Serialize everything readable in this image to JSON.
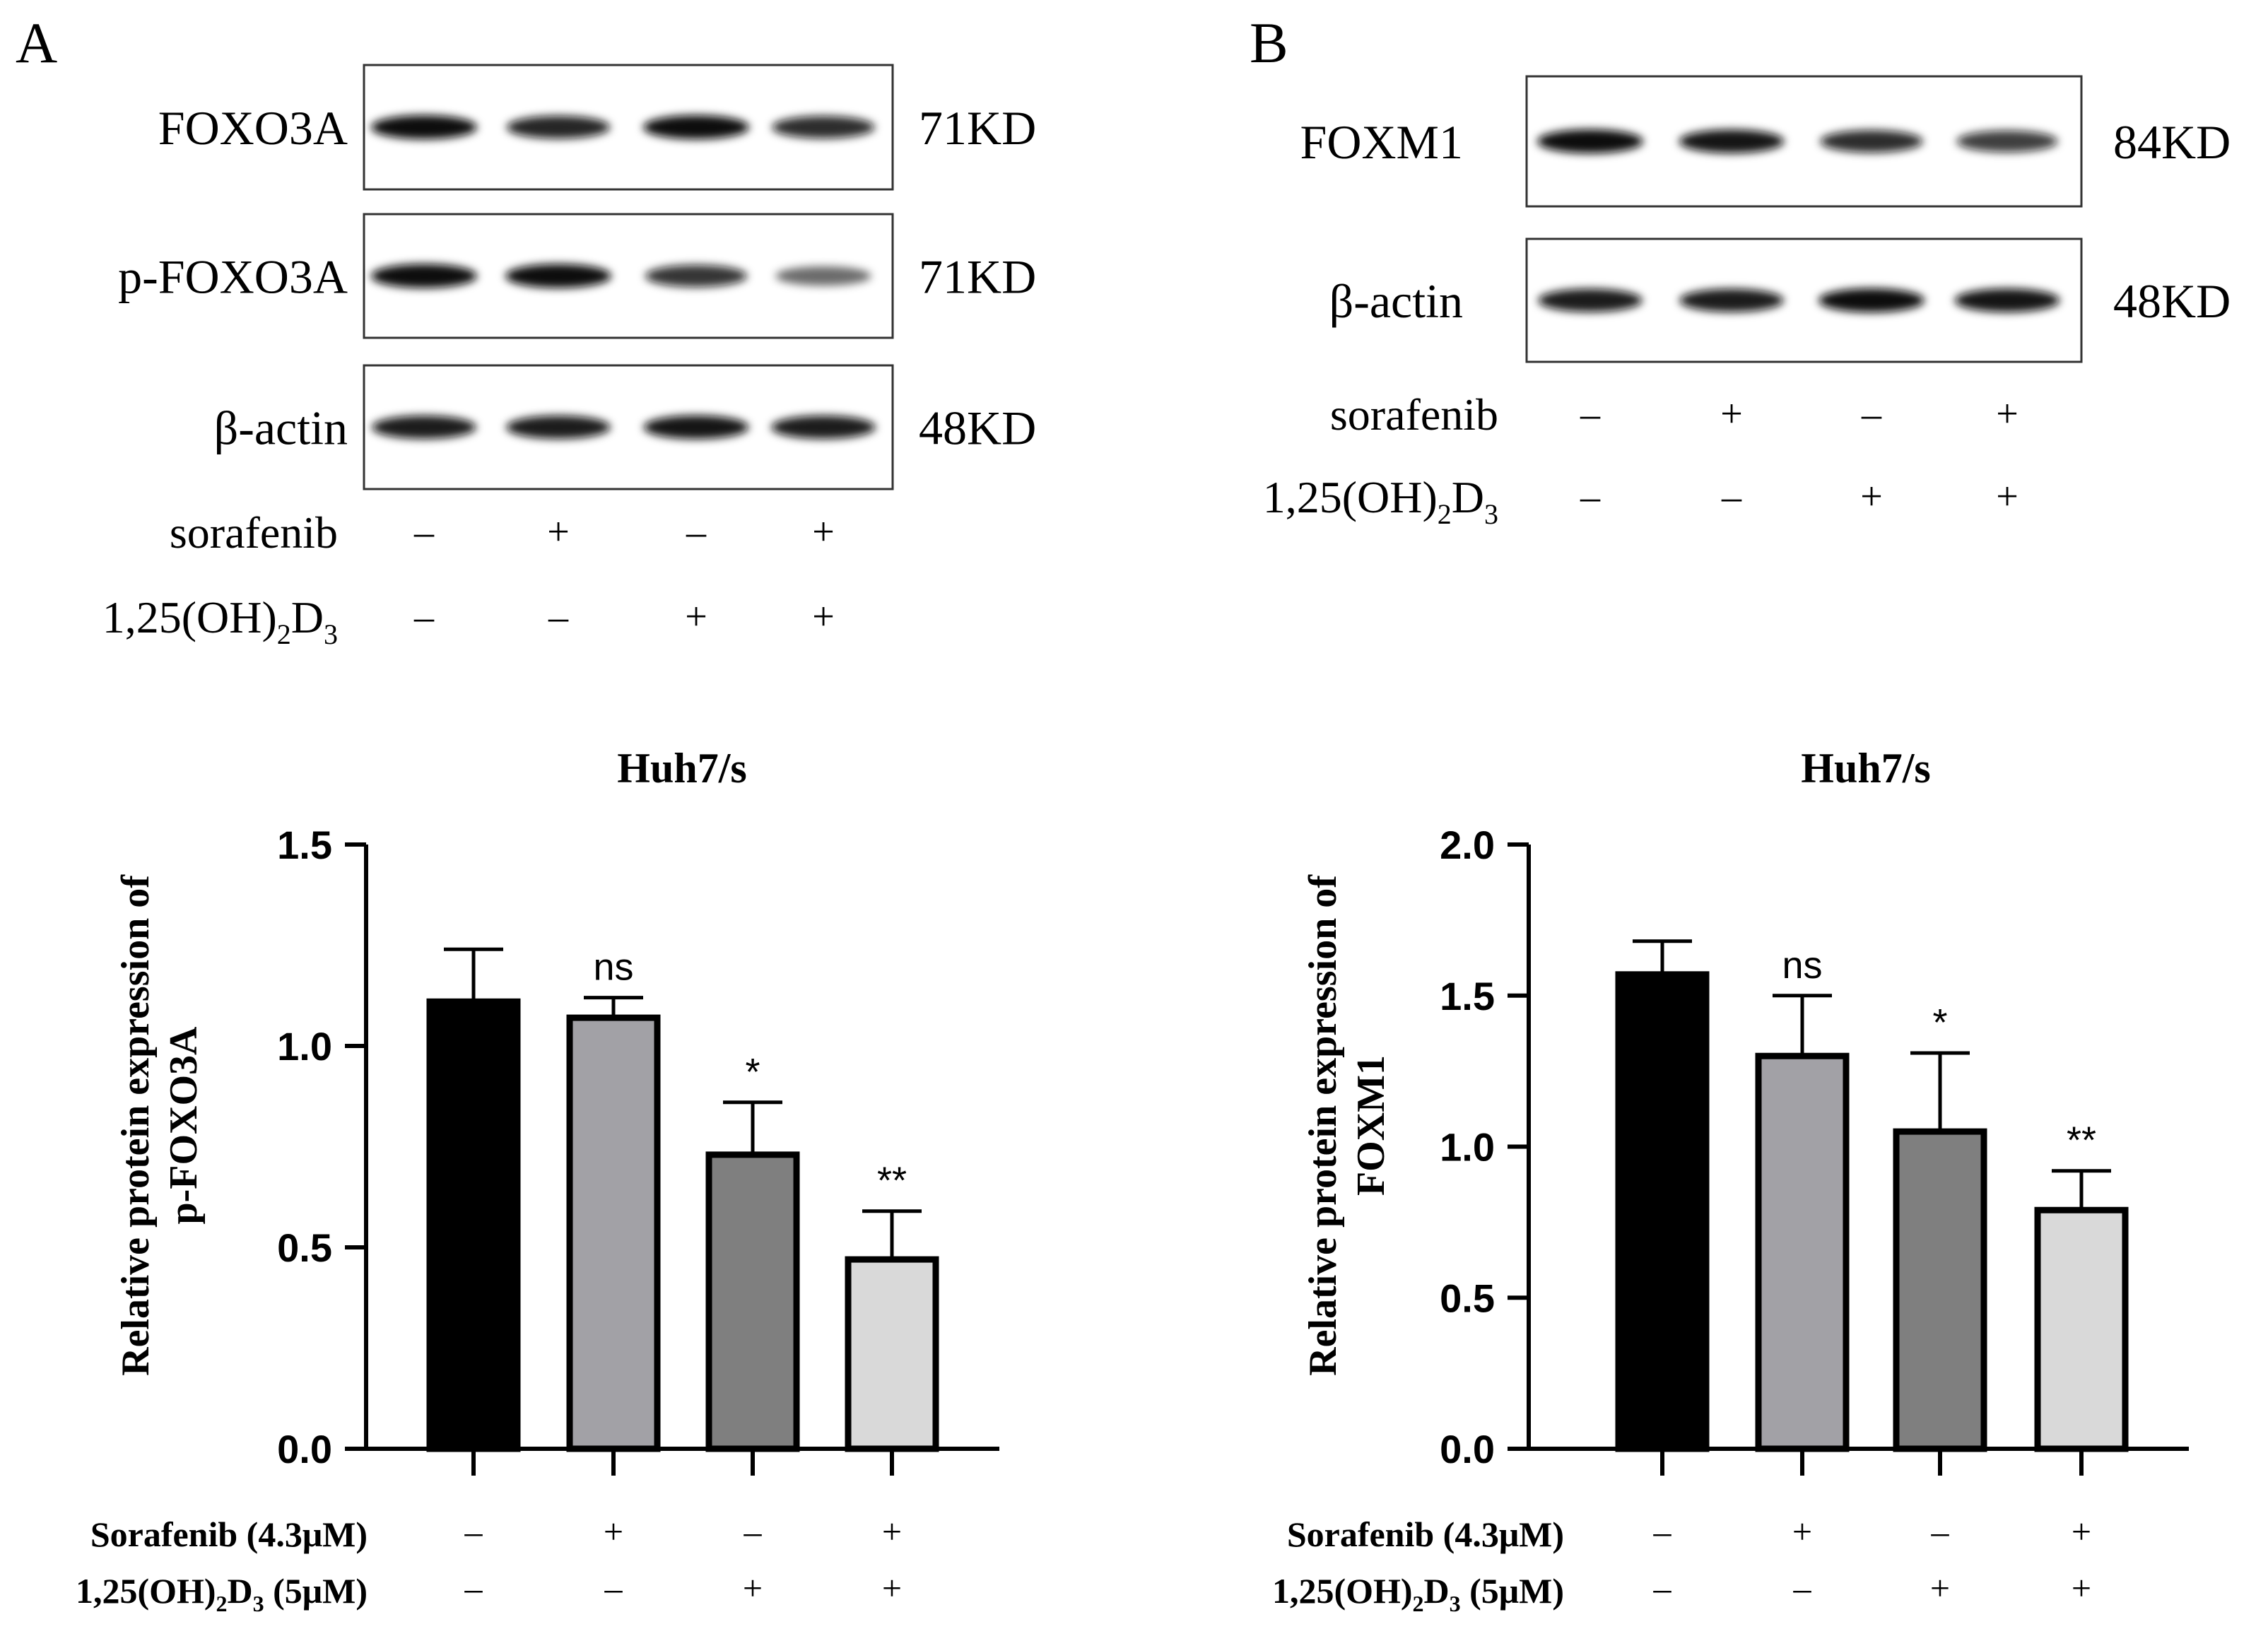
{
  "panels": [
    {
      "letter": "A",
      "blots": [
        {
          "label": "FOXO3A",
          "size": "71KD",
          "bands": [
            1.0,
            0.85,
            1.0,
            0.8
          ]
        },
        {
          "label": "p-FOXO3A",
          "size": "71KD",
          "bands": [
            1.0,
            1.0,
            0.75,
            0.35
          ]
        },
        {
          "label": "β-actin",
          "size": "48KD",
          "bands": [
            0.9,
            0.9,
            0.95,
            0.9
          ]
        }
      ],
      "treatments": [
        {
          "label": "sorafenib",
          "signs": [
            "–",
            "+",
            "–",
            "+"
          ]
        },
        {
          "label_main": "1,25(OH)",
          "sub1": "2",
          "label_mid": "D",
          "sub2": "3",
          "signs": [
            "–",
            "–",
            "+",
            "+"
          ]
        }
      ]
    },
    {
      "letter": "B",
      "blots": [
        {
          "label": "FOXM1",
          "size": "84KD",
          "bands": [
            1.0,
            0.95,
            0.8,
            0.7
          ]
        },
        {
          "label": "β-actin",
          "size": "48KD",
          "bands": [
            0.9,
            0.9,
            1.0,
            0.95
          ]
        }
      ],
      "treatments": [
        {
          "label": "sorafenib",
          "signs": [
            "–",
            "+",
            "–",
            "+"
          ]
        },
        {
          "label_main": "1,25(OH)",
          "sub1": "2",
          "label_mid": "D",
          "sub2": "3",
          "signs": [
            "–",
            "–",
            "+",
            "+"
          ]
        }
      ]
    }
  ],
  "chart_data": [
    {
      "type": "bar",
      "title": "Huh7/s",
      "ylabel": [
        "Relative protein expression of",
        "p-FOXO3A"
      ],
      "ylim": [
        0,
        1.5
      ],
      "yticks": [
        "0.0",
        "0.5",
        "1.0",
        "1.5"
      ],
      "values": [
        1.11,
        1.07,
        0.73,
        0.47
      ],
      "errors": [
        0.13,
        0.05,
        0.13,
        0.12
      ],
      "significance": [
        "",
        "ns",
        "*",
        "**"
      ],
      "bar_colors": [
        "#000000",
        "#a2a1a6",
        "#7f7f7f",
        "#d9d9d9"
      ],
      "treatments": [
        {
          "label": "Sorafenib (4.3μM)",
          "signs": [
            "–",
            "+",
            "–",
            "+"
          ]
        },
        {
          "label_main": "1,25(OH)",
          "sub1": "2",
          "label_mid": "D",
          "sub2": "3",
          "label_end": " (5μM)",
          "signs": [
            "–",
            "–",
            "+",
            "+"
          ]
        }
      ]
    },
    {
      "type": "bar",
      "title": "Huh7/s",
      "ylabel": [
        "Relative protein expression of",
        "FOXM1"
      ],
      "ylim": [
        0,
        2.0
      ],
      "yticks": [
        "0.0",
        "0.5",
        "1.0",
        "1.5",
        "2.0"
      ],
      "values": [
        1.57,
        1.3,
        1.05,
        0.79
      ],
      "errors": [
        0.11,
        0.2,
        0.26,
        0.13
      ],
      "significance": [
        "",
        "ns",
        "*",
        "**"
      ],
      "bar_colors": [
        "#000000",
        "#a2a1a6",
        "#7f7f7f",
        "#d9d9d9"
      ],
      "treatments": [
        {
          "label": "Sorafenib (4.3μM)",
          "signs": [
            "–",
            "+",
            "–",
            "+"
          ]
        },
        {
          "label_main": "1,25(OH)",
          "sub1": "2",
          "label_mid": "D",
          "sub2": "3",
          "label_end": " (5μM)",
          "signs": [
            "–",
            "–",
            "+",
            "+"
          ]
        }
      ]
    }
  ]
}
